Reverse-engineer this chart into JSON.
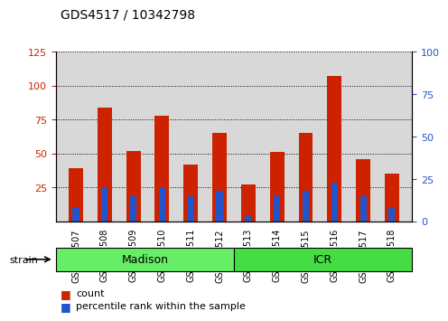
{
  "title": "GDS4517 / 10342798",
  "samples": [
    "GSM727507",
    "GSM727508",
    "GSM727509",
    "GSM727510",
    "GSM727511",
    "GSM727512",
    "GSM727513",
    "GSM727514",
    "GSM727515",
    "GSM727516",
    "GSM727517",
    "GSM727518"
  ],
  "count": [
    39,
    84,
    52,
    78,
    42,
    65,
    27,
    51,
    65,
    107,
    46,
    35
  ],
  "percentile": [
    8,
    20,
    15,
    20,
    15,
    18,
    3,
    15,
    18,
    23,
    15,
    8
  ],
  "red_color": "#cc2200",
  "blue_color": "#2255cc",
  "ylim_left": [
    0,
    125
  ],
  "ylim_right": [
    0,
    100
  ],
  "yticks_left": [
    25,
    50,
    75,
    100,
    125
  ],
  "yticks_right": [
    0,
    25,
    50,
    75,
    100
  ],
  "groups": [
    {
      "label": "Madison",
      "start": 0,
      "end": 6,
      "color": "#66ee66"
    },
    {
      "label": "ICR",
      "start": 6,
      "end": 12,
      "color": "#44dd44"
    }
  ],
  "legend_count": "count",
  "legend_pct": "percentile rank within the sample",
  "bar_width": 0.5,
  "axis_bg": "#d8d8d8"
}
